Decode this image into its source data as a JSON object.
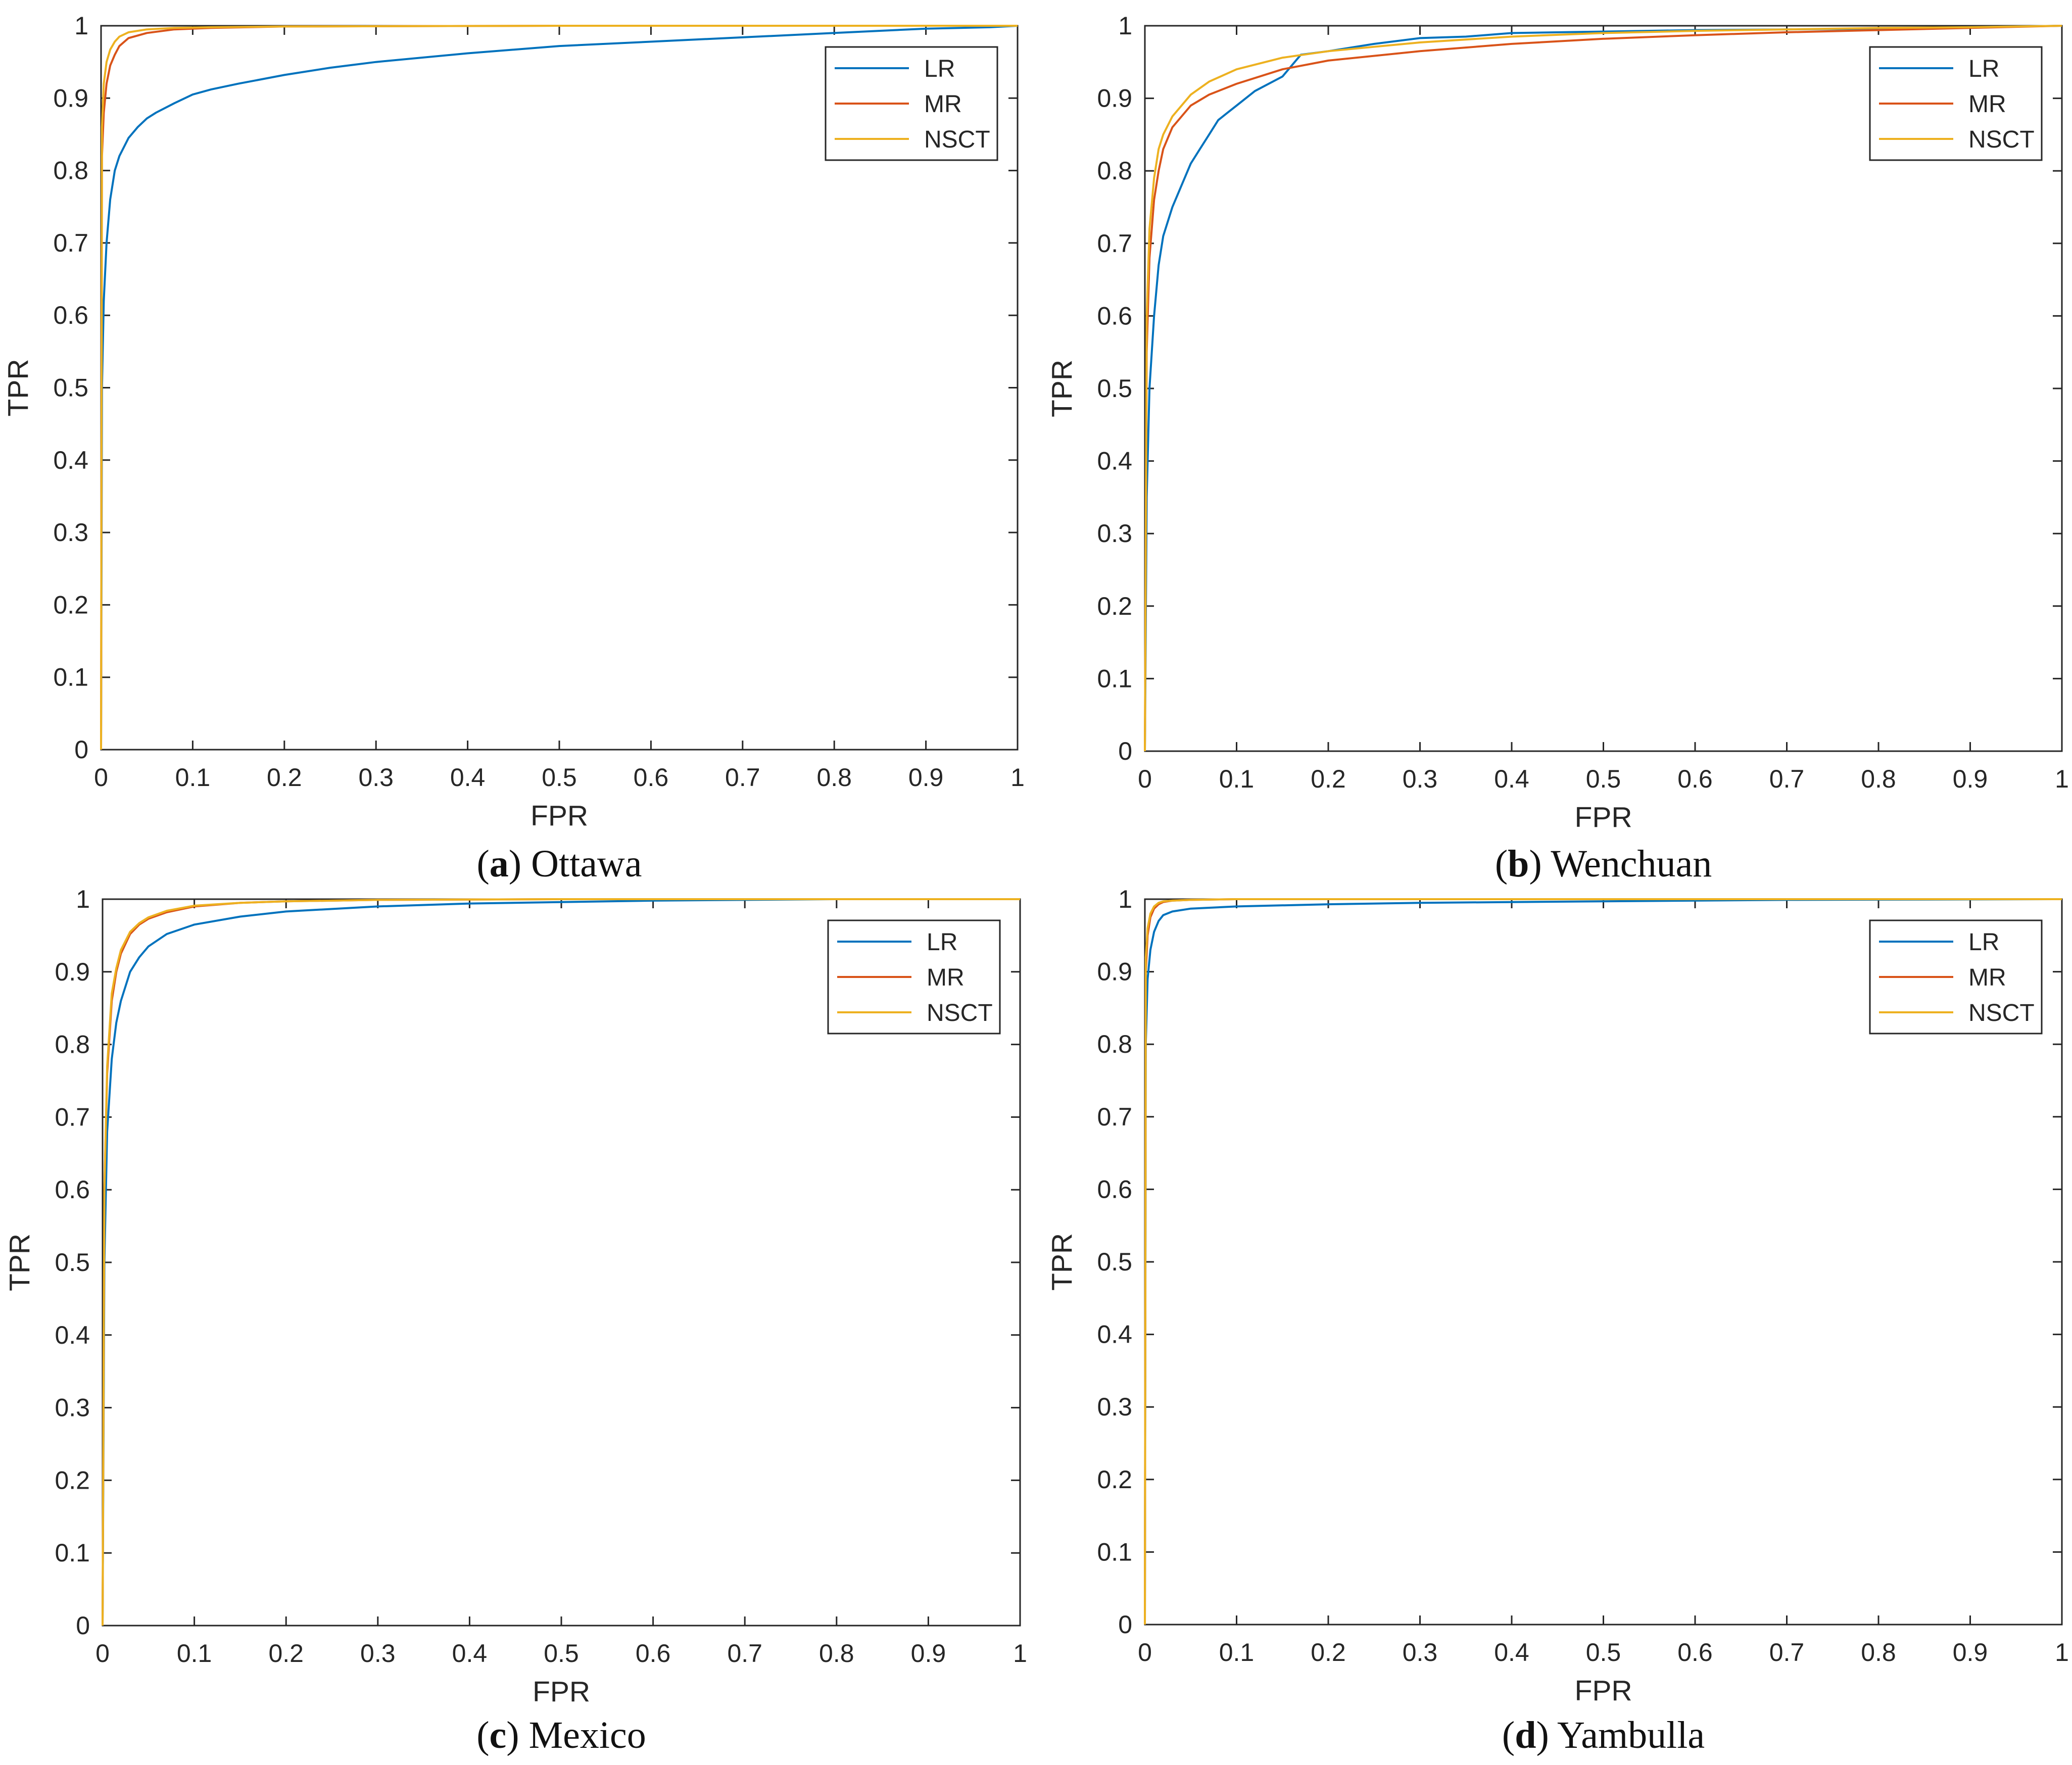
{
  "figure": {
    "colors": {
      "LR": "#0072BD",
      "MR": "#D95319",
      "NSCT": "#EDB120",
      "axis": "#262626"
    }
  },
  "chart_data": [
    {
      "type": "line",
      "panel": "a",
      "caption": {
        "tag": "a",
        "text": "Ottawa"
      },
      "xlabel": "FPR",
      "ylabel": "TPR",
      "xlim": [
        0,
        1
      ],
      "ylim": [
        0,
        1
      ],
      "xticks": [
        "0",
        "0.1",
        "0.2",
        "0.3",
        "0.4",
        "0.5",
        "0.6",
        "0.7",
        "0.8",
        "0.9",
        "1"
      ],
      "yticks": [
        "0",
        "0.1",
        "0.2",
        "0.3",
        "0.4",
        "0.5",
        "0.6",
        "0.7",
        "0.8",
        "0.9",
        "1"
      ],
      "grid": false,
      "legend": {
        "position": "top-right",
        "entries": [
          "LR",
          "MR",
          "NSCT"
        ]
      },
      "series": [
        {
          "name": "LR",
          "x": [
            0,
            0.001,
            0.003,
            0.006,
            0.01,
            0.015,
            0.02,
            0.03,
            0.04,
            0.05,
            0.06,
            0.08,
            0.1,
            0.12,
            0.15,
            0.2,
            0.25,
            0.3,
            0.4,
            0.5,
            0.6,
            0.7,
            0.8,
            0.9,
            0.97,
            1
          ],
          "y": [
            0,
            0.5,
            0.62,
            0.7,
            0.76,
            0.8,
            0.82,
            0.845,
            0.86,
            0.872,
            0.88,
            0.893,
            0.905,
            0.912,
            0.92,
            0.932,
            0.942,
            0.95,
            0.962,
            0.972,
            0.978,
            0.984,
            0.99,
            0.996,
            0.998,
            1
          ]
        },
        {
          "name": "MR",
          "x": [
            0,
            0.001,
            0.003,
            0.006,
            0.01,
            0.015,
            0.02,
            0.03,
            0.05,
            0.08,
            0.12,
            0.2,
            0.5,
            1
          ],
          "y": [
            0,
            0.82,
            0.88,
            0.92,
            0.945,
            0.96,
            0.972,
            0.983,
            0.99,
            0.995,
            0.997,
            0.999,
            1,
            1
          ]
        },
        {
          "name": "NSCT",
          "x": [
            0,
            0.001,
            0.003,
            0.006,
            0.01,
            0.015,
            0.02,
            0.03,
            0.05,
            0.08,
            0.12,
            0.2,
            0.5,
            1
          ],
          "y": [
            0,
            0.86,
            0.92,
            0.95,
            0.967,
            0.978,
            0.985,
            0.991,
            0.995,
            0.997,
            0.998,
            0.999,
            1,
            1
          ]
        }
      ]
    },
    {
      "type": "line",
      "panel": "b",
      "caption": {
        "tag": "b",
        "text": "Wenchuan"
      },
      "xlabel": "FPR",
      "ylabel": "TPR",
      "xlim": [
        0,
        1
      ],
      "ylim": [
        0,
        1
      ],
      "xticks": [
        "0",
        "0.1",
        "0.2",
        "0.3",
        "0.4",
        "0.5",
        "0.6",
        "0.7",
        "0.8",
        "0.9",
        "1"
      ],
      "yticks": [
        "0",
        "0.1",
        "0.2",
        "0.3",
        "0.4",
        "0.5",
        "0.6",
        "0.7",
        "0.8",
        "0.9",
        "1"
      ],
      "grid": false,
      "legend": {
        "position": "top-right",
        "entries": [
          "LR",
          "MR",
          "NSCT"
        ]
      },
      "series": [
        {
          "name": "LR",
          "x": [
            0,
            0.002,
            0.005,
            0.01,
            0.015,
            0.02,
            0.03,
            0.04,
            0.05,
            0.06,
            0.07,
            0.08,
            0.09,
            0.1,
            0.12,
            0.15,
            0.17,
            0.2,
            0.25,
            0.3,
            0.35,
            0.4,
            0.5,
            0.6,
            0.7,
            0.8,
            0.9,
            1
          ],
          "y": [
            0,
            0.35,
            0.5,
            0.6,
            0.67,
            0.71,
            0.75,
            0.78,
            0.81,
            0.83,
            0.85,
            0.87,
            0.88,
            0.89,
            0.91,
            0.93,
            0.96,
            0.965,
            0.975,
            0.983,
            0.985,
            0.99,
            0.992,
            0.994,
            0.995,
            0.996,
            0.998,
            1
          ]
        },
        {
          "name": "MR",
          "x": [
            0,
            0.002,
            0.005,
            0.01,
            0.015,
            0.02,
            0.03,
            0.05,
            0.07,
            0.1,
            0.15,
            0.2,
            0.3,
            0.4,
            0.5,
            0.6,
            0.7,
            0.8,
            0.9,
            1
          ],
          "y": [
            0,
            0.55,
            0.68,
            0.76,
            0.8,
            0.83,
            0.86,
            0.89,
            0.905,
            0.92,
            0.94,
            0.952,
            0.965,
            0.975,
            0.982,
            0.987,
            0.991,
            0.994,
            0.997,
            1
          ]
        },
        {
          "name": "NSCT",
          "x": [
            0,
            0.002,
            0.005,
            0.01,
            0.015,
            0.02,
            0.03,
            0.05,
            0.07,
            0.1,
            0.15,
            0.2,
            0.3,
            0.4,
            0.5,
            0.6,
            0.7,
            0.8,
            0.9,
            1
          ],
          "y": [
            0,
            0.6,
            0.72,
            0.79,
            0.83,
            0.85,
            0.875,
            0.905,
            0.923,
            0.94,
            0.956,
            0.965,
            0.977,
            0.985,
            0.99,
            0.993,
            0.995,
            0.997,
            0.998,
            1
          ]
        }
      ]
    },
    {
      "type": "line",
      "panel": "c",
      "caption": {
        "tag": "c",
        "text": "Mexico"
      },
      "xlabel": "FPR",
      "ylabel": "TPR",
      "xlim": [
        0,
        1
      ],
      "ylim": [
        0,
        1
      ],
      "xticks": [
        "0",
        "0.1",
        "0.2",
        "0.3",
        "0.4",
        "0.5",
        "0.6",
        "0.7",
        "0.8",
        "0.9",
        "1"
      ],
      "yticks": [
        "0",
        "0.1",
        "0.2",
        "0.3",
        "0.4",
        "0.5",
        "0.6",
        "0.7",
        "0.8",
        "0.9",
        "1"
      ],
      "grid": false,
      "legend": {
        "position": "top-right",
        "entries": [
          "LR",
          "MR",
          "NSCT"
        ]
      },
      "series": [
        {
          "name": "LR",
          "x": [
            0,
            0.002,
            0.005,
            0.01,
            0.015,
            0.02,
            0.03,
            0.04,
            0.05,
            0.07,
            0.1,
            0.15,
            0.2,
            0.3,
            0.4,
            0.5,
            0.6,
            0.7,
            0.8,
            1
          ],
          "y": [
            0,
            0.5,
            0.68,
            0.78,
            0.83,
            0.86,
            0.9,
            0.92,
            0.935,
            0.952,
            0.965,
            0.976,
            0.983,
            0.99,
            0.994,
            0.996,
            0.998,
            0.999,
            1,
            1
          ]
        },
        {
          "name": "MR",
          "x": [
            0,
            0.002,
            0.005,
            0.01,
            0.015,
            0.02,
            0.03,
            0.04,
            0.05,
            0.07,
            0.1,
            0.15,
            0.2,
            0.3,
            0.5,
            1
          ],
          "y": [
            0,
            0.6,
            0.76,
            0.86,
            0.9,
            0.925,
            0.952,
            0.965,
            0.973,
            0.982,
            0.99,
            0.995,
            0.997,
            0.999,
            1,
            1
          ]
        },
        {
          "name": "NSCT",
          "x": [
            0,
            0.002,
            0.005,
            0.01,
            0.015,
            0.02,
            0.03,
            0.04,
            0.05,
            0.07,
            0.1,
            0.15,
            0.2,
            0.3,
            0.5,
            1
          ],
          "y": [
            0,
            0.6,
            0.77,
            0.87,
            0.905,
            0.93,
            0.955,
            0.967,
            0.975,
            0.984,
            0.991,
            0.995,
            0.997,
            0.999,
            1,
            1
          ]
        }
      ]
    },
    {
      "type": "line",
      "panel": "d",
      "caption": {
        "tag": "d",
        "text": "Yambulla"
      },
      "xlabel": "FPR",
      "ylabel": "TPR",
      "xlim": [
        0,
        1
      ],
      "ylim": [
        0,
        1
      ],
      "xticks": [
        "0",
        "0.1",
        "0.2",
        "0.3",
        "0.4",
        "0.5",
        "0.6",
        "0.7",
        "0.8",
        "0.9",
        "1"
      ],
      "yticks": [
        "0",
        "0.1",
        "0.2",
        "0.3",
        "0.4",
        "0.5",
        "0.6",
        "0.7",
        "0.8",
        "0.9",
        "1"
      ],
      "grid": false,
      "legend": {
        "position": "top-right",
        "entries": [
          "LR",
          "MR",
          "NSCT"
        ]
      },
      "series": [
        {
          "name": "LR",
          "x": [
            0,
            0.001,
            0.003,
            0.006,
            0.01,
            0.015,
            0.02,
            0.03,
            0.05,
            0.1,
            0.2,
            0.3,
            0.5,
            0.7,
            1
          ],
          "y": [
            0,
            0.8,
            0.89,
            0.93,
            0.955,
            0.97,
            0.978,
            0.983,
            0.987,
            0.99,
            0.993,
            0.995,
            0.997,
            0.999,
            1
          ]
        },
        {
          "name": "MR",
          "x": [
            0,
            0.001,
            0.003,
            0.006,
            0.01,
            0.015,
            0.02,
            0.03,
            0.05,
            0.1,
            0.3,
            1
          ],
          "y": [
            0,
            0.9,
            0.95,
            0.975,
            0.987,
            0.993,
            0.996,
            0.998,
            0.999,
            1,
            1,
            1
          ]
        },
        {
          "name": "NSCT",
          "x": [
            0,
            0.001,
            0.003,
            0.006,
            0.01,
            0.015,
            0.02,
            0.03,
            0.05,
            0.1,
            0.3,
            1
          ],
          "y": [
            0,
            0.92,
            0.96,
            0.98,
            0.99,
            0.995,
            0.997,
            0.998,
            0.999,
            1,
            1,
            1
          ]
        }
      ]
    }
  ]
}
